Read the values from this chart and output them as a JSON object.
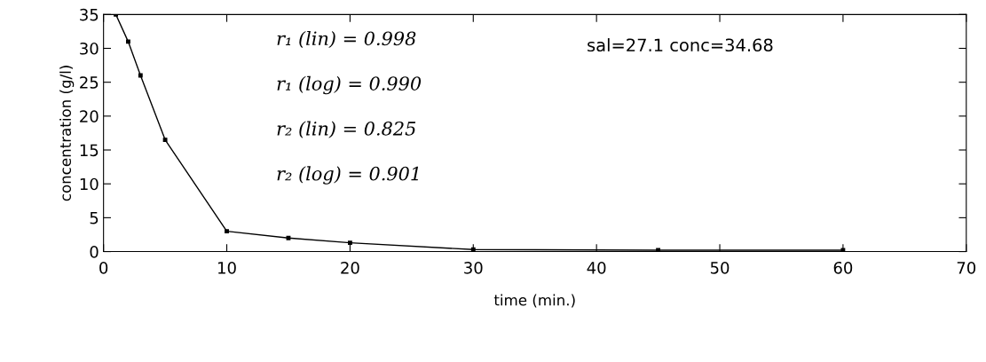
{
  "chart_data": {
    "type": "line",
    "xlabel": "time (min.)",
    "ylabel": "concentration (g/l)",
    "x": [
      1,
      2,
      3,
      5,
      10,
      15,
      20,
      30,
      45,
      60
    ],
    "series": [
      {
        "color": "#000000",
        "values": [
          35,
          31,
          26,
          16.5,
          3,
          2,
          1.3,
          0.3,
          0.2,
          0.2
        ]
      }
    ],
    "xlim": [
      0,
      70
    ],
    "xticks": [
      0,
      10,
      20,
      30,
      40,
      50,
      60,
      70
    ],
    "ylim": [
      0,
      35
    ],
    "yticks": [
      0,
      5,
      10,
      15,
      20,
      25,
      30,
      35
    ],
    "marker": "square",
    "line_style": "solid",
    "grid": false,
    "legend": false,
    "annotations": [
      "sal=27.1 conc=34.68",
      "r₁ (lin) = 0.998",
      "r₁ (log) = 0.990",
      "r₂ (lin) = 0.825",
      "r₂ (log) = 0.901"
    ]
  }
}
